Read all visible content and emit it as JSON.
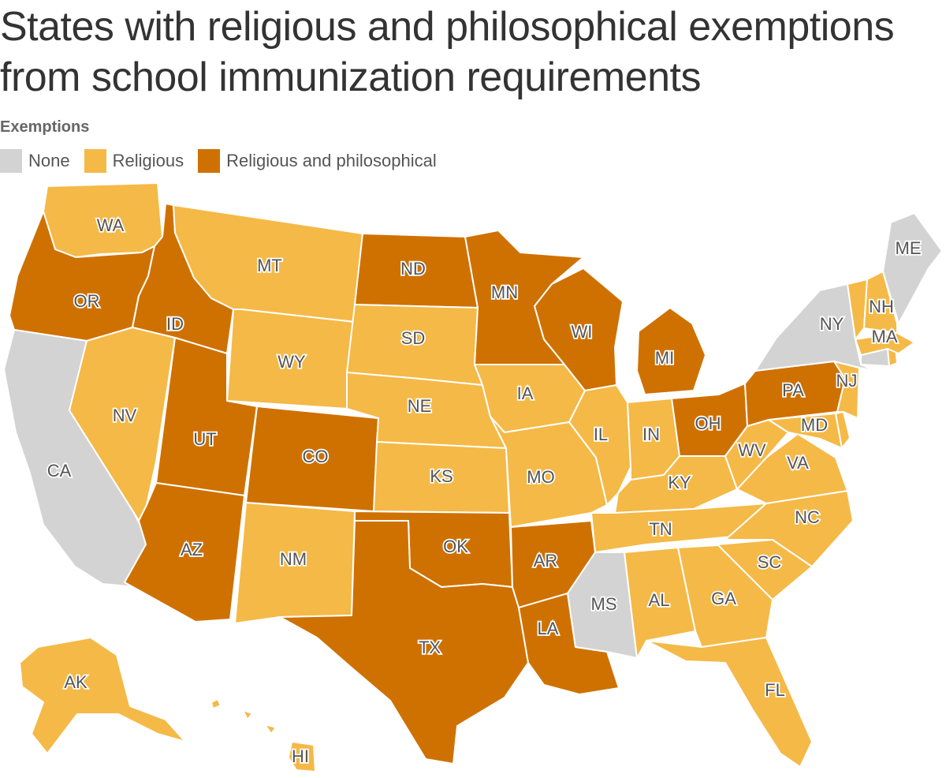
{
  "title": "States with religious and philosophical exemptions from school immunization requirements",
  "legend": {
    "heading": "Exemptions",
    "items": [
      {
        "key": "none",
        "label": "None",
        "color": "#d3d3d3"
      },
      {
        "key": "religious",
        "label": "Religious",
        "color": "#f5b947"
      },
      {
        "key": "both",
        "label": "Religious and philosophical",
        "color": "#cf7100"
      }
    ]
  },
  "states": [
    {
      "abbr": "WA",
      "category": "religious"
    },
    {
      "abbr": "OR",
      "category": "both"
    },
    {
      "abbr": "CA",
      "category": "none"
    },
    {
      "abbr": "ID",
      "category": "both"
    },
    {
      "abbr": "NV",
      "category": "religious"
    },
    {
      "abbr": "MT",
      "category": "religious"
    },
    {
      "abbr": "WY",
      "category": "religious"
    },
    {
      "abbr": "UT",
      "category": "both"
    },
    {
      "abbr": "AZ",
      "category": "both"
    },
    {
      "abbr": "CO",
      "category": "both"
    },
    {
      "abbr": "NM",
      "category": "religious"
    },
    {
      "abbr": "ND",
      "category": "both"
    },
    {
      "abbr": "SD",
      "category": "religious"
    },
    {
      "abbr": "NE",
      "category": "religious"
    },
    {
      "abbr": "KS",
      "category": "religious"
    },
    {
      "abbr": "OK",
      "category": "both"
    },
    {
      "abbr": "TX",
      "category": "both"
    },
    {
      "abbr": "MN",
      "category": "both"
    },
    {
      "abbr": "IA",
      "category": "religious"
    },
    {
      "abbr": "MO",
      "category": "religious"
    },
    {
      "abbr": "AR",
      "category": "both"
    },
    {
      "abbr": "LA",
      "category": "both"
    },
    {
      "abbr": "WI",
      "category": "both"
    },
    {
      "abbr": "IL",
      "category": "religious"
    },
    {
      "abbr": "MI",
      "category": "both"
    },
    {
      "abbr": "IN",
      "category": "religious"
    },
    {
      "abbr": "OH",
      "category": "both"
    },
    {
      "abbr": "KY",
      "category": "religious"
    },
    {
      "abbr": "TN",
      "category": "religious"
    },
    {
      "abbr": "MS",
      "category": "none"
    },
    {
      "abbr": "AL",
      "category": "religious"
    },
    {
      "abbr": "GA",
      "category": "religious"
    },
    {
      "abbr": "FL",
      "category": "religious"
    },
    {
      "abbr": "SC",
      "category": "religious"
    },
    {
      "abbr": "NC",
      "category": "religious"
    },
    {
      "abbr": "VA",
      "category": "religious"
    },
    {
      "abbr": "WV",
      "category": "religious"
    },
    {
      "abbr": "MD",
      "category": "religious"
    },
    {
      "abbr": "DE",
      "category": "religious"
    },
    {
      "abbr": "PA",
      "category": "both"
    },
    {
      "abbr": "NJ",
      "category": "religious"
    },
    {
      "abbr": "NY",
      "category": "none"
    },
    {
      "abbr": "CT",
      "category": "none"
    },
    {
      "abbr": "RI",
      "category": "religious"
    },
    {
      "abbr": "MA",
      "category": "religious"
    },
    {
      "abbr": "VT",
      "category": "religious"
    },
    {
      "abbr": "NH",
      "category": "religious"
    },
    {
      "abbr": "ME",
      "category": "none"
    },
    {
      "abbr": "AK",
      "category": "religious"
    },
    {
      "abbr": "HI",
      "category": "religious"
    }
  ]
}
